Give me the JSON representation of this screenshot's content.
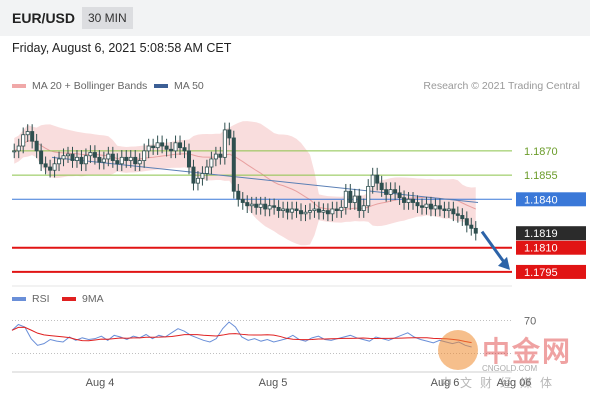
{
  "header": {
    "pair": "EUR/USD",
    "timeframe": "30 MIN",
    "datetime": "Friday, August 6, 2021 5:08:58 AM CET"
  },
  "legend": {
    "ma20_label": "MA 20 + Bollinger Bands",
    "ma50_label": "MA 50",
    "credit": "Research © 2021 Trading Central"
  },
  "rsi_legend": {
    "rsi_label": "RSI",
    "ma9_label": "9MA"
  },
  "watermark": {
    "big": "中金网",
    "small": "CNGOLD.COM",
    "sub": "中文财经媒体"
  },
  "colors": {
    "resistance": "#8bc34a",
    "pivot": "#3a78d8",
    "support": "#e11414",
    "current": "#2b2b2b",
    "candle": "#2f4f4f",
    "bollinger": "#f8d7d7",
    "ma20": "#e8a0a0",
    "ma50": "#5a7fb5",
    "rsi": "#6a8fd8",
    "rsi_ma": "#e02020",
    "arrow": "#2c63a8"
  },
  "chart_data": {
    "type": "line",
    "title": "EUR/USD",
    "xlabel": "",
    "ylabel": "",
    "ylim": [
      1.179,
      1.1904
    ],
    "x_ticks": [
      "Aug 4",
      "Aug 5",
      "Aug 6",
      "Aug 06"
    ],
    "price_levels": [
      {
        "value": 1.187,
        "label": "1.1870",
        "kind": "resistance"
      },
      {
        "value": 1.1855,
        "label": "1.1855",
        "kind": "resistance"
      },
      {
        "value": 1.184,
        "label": "1.1840",
        "kind": "pivot"
      },
      {
        "value": 1.1819,
        "label": "1.1819",
        "kind": "current"
      },
      {
        "value": 1.181,
        "label": "1.1810",
        "kind": "support"
      },
      {
        "value": 1.1795,
        "label": "1.1795",
        "kind": "support"
      }
    ],
    "projection": {
      "from": 1.182,
      "to": 1.1795
    },
    "series": [
      {
        "name": "EUR/USD",
        "values": [
          1.187,
          1.1873,
          1.188,
          1.1882,
          1.1876,
          1.187,
          1.1862,
          1.186,
          1.1858,
          1.1862,
          1.1865,
          1.1867,
          1.1868,
          1.1864,
          1.1866,
          1.1862,
          1.1867,
          1.1869,
          1.1866,
          1.1863,
          1.1865,
          1.1868,
          1.1864,
          1.1862,
          1.1866,
          1.1864,
          1.1866,
          1.1862,
          1.1864,
          1.187,
          1.1873,
          1.1872,
          1.1875,
          1.1873,
          1.1871,
          1.187,
          1.1875,
          1.1872,
          1.187,
          1.186,
          1.185,
          1.1853,
          1.1856,
          1.186,
          1.1865,
          1.1868,
          1.1866,
          1.1883,
          1.1878,
          1.1845,
          1.184,
          1.1838,
          1.1836,
          1.1837,
          1.1835,
          1.1837,
          1.1834,
          1.1836,
          1.1835,
          1.1833,
          1.1834,
          1.1832,
          1.1834,
          1.1833,
          1.1831,
          1.1832,
          1.1833,
          1.1834,
          1.1832,
          1.1833,
          1.1831,
          1.1834,
          1.1833,
          1.1835,
          1.1845,
          1.1838,
          1.1842,
          1.1833,
          1.1836,
          1.1848,
          1.1855,
          1.185,
          1.1846,
          1.1843,
          1.1846,
          1.1844,
          1.1841,
          1.1838,
          1.184,
          1.1838,
          1.1836,
          1.1835,
          1.1837,
          1.1834,
          1.1836,
          1.1834,
          1.1833,
          1.1834,
          1.1831,
          1.183,
          1.1828,
          1.1824,
          1.1822,
          1.1819
        ]
      },
      {
        "name": "MA 50",
        "values_from_to": [
          1.1866,
          1.1838
        ]
      }
    ],
    "rsi": {
      "levels": [
        70
      ],
      "values": [
        58,
        65,
        62,
        48,
        40,
        42,
        47,
        45,
        44,
        50,
        46,
        49,
        47,
        48,
        51,
        46,
        52,
        50,
        47,
        51,
        49,
        53,
        48,
        52,
        50,
        55,
        60,
        57,
        52,
        49,
        46,
        44,
        48,
        60,
        68,
        62,
        50,
        46,
        48,
        45,
        47,
        44,
        46,
        48,
        52,
        47,
        45,
        49,
        51,
        47,
        46,
        48,
        50,
        52,
        49,
        47,
        45,
        50,
        48,
        46,
        49,
        52,
        55,
        50,
        47,
        45,
        43,
        46,
        44,
        42,
        44,
        40,
        38
      ]
    }
  }
}
